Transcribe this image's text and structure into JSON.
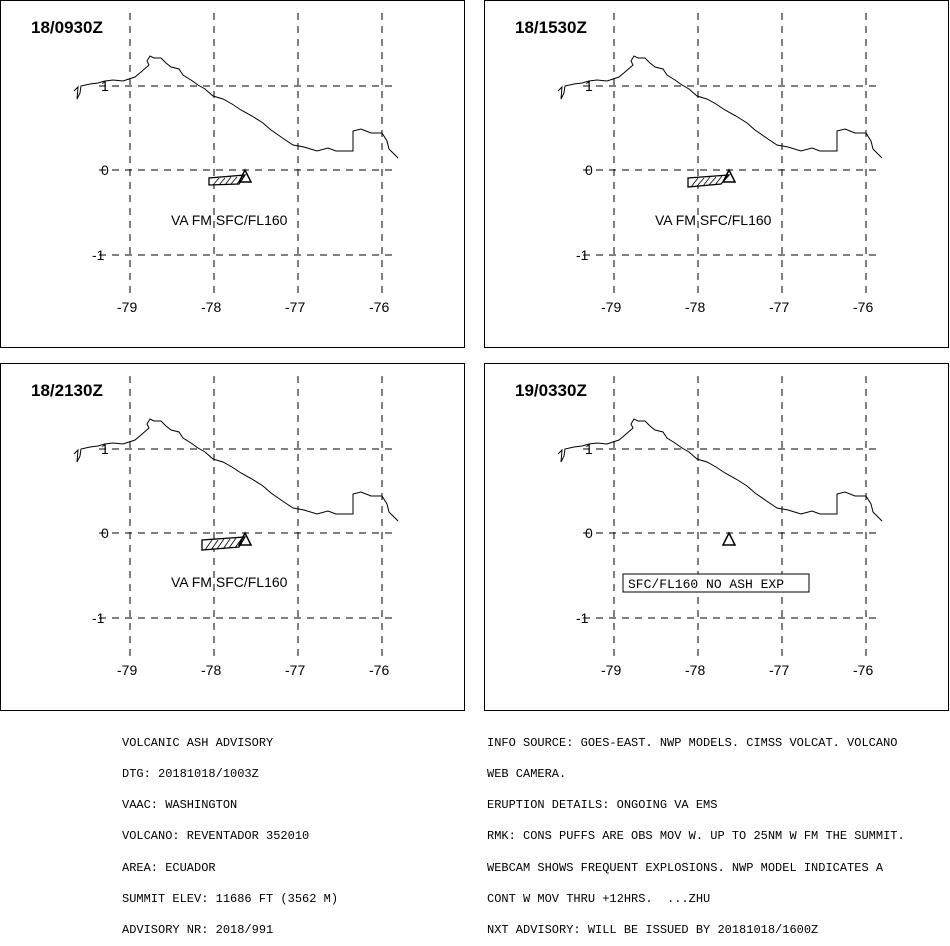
{
  "panels": [
    {
      "time": "18/0930Z",
      "label": "VA FM SFC/FL160",
      "label_boxed": false,
      "has_ash_polygon": true
    },
    {
      "time": "18/1530Z",
      "label": "VA FM SFC/FL160",
      "label_boxed": false,
      "has_ash_polygon": true
    },
    {
      "time": "18/2130Z",
      "label": "VA FM SFC/FL160",
      "label_boxed": false,
      "has_ash_polygon": true
    },
    {
      "time": "19/0330Z",
      "label": "SFC/FL160 NO ASH EXP",
      "label_boxed": true,
      "has_ash_polygon": false
    }
  ],
  "axes": {
    "lon_ticks": [
      "-79",
      "-78",
      "-77",
      "-76"
    ],
    "lat_ticks": [
      "1",
      "0",
      "-1"
    ]
  },
  "volcano_symbol": "triangle-icon",
  "advisory_left": [
    "VOLCANIC ASH ADVISORY",
    "DTG: 20181018/1003Z",
    "VAAC: WASHINGTON",
    "VOLCANO: REVENTADOR 352010",
    "AREA: ECUADOR",
    "SUMMIT ELEV: 11686 FT (3562 M)",
    "ADVISORY NR: 2018/991"
  ],
  "advisory_right": [
    "INFO SOURCE: GOES-EAST. NWP MODELS. CIMSS VOLCAT. VOLCANO",
    "WEB CAMERA.",
    "ERUPTION DETAILS: ONGOING VA EMS",
    "RMK: CONS PUFFS ARE OBS MOV W. UP TO 25NM W FM THE SUMMIT.",
    "WEBCAM SHOWS FREQUENT EXPLOSIONS. NWP MODEL INDICATES A",
    "CONT W MOV THRU +12HRS.  ...ZHU",
    "NXT ADVISORY: WILL BE ISSUED BY 20181018/1600Z"
  ],
  "colors": {
    "line": "#000000",
    "background": "#ffffff"
  }
}
